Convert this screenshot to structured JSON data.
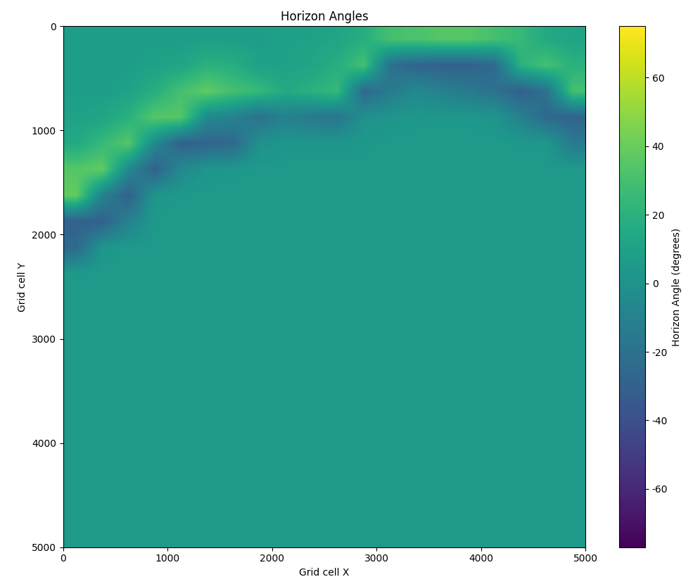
{
  "chart_data": {
    "type": "heatmap",
    "title": "Horizon Angles",
    "x_label": "Grid cell X",
    "y_label": "Grid cell Y",
    "xlim": [
      0,
      5000
    ],
    "ylim": [
      5000,
      0
    ],
    "xticks": [
      0,
      1000,
      2000,
      3000,
      4000,
      5000
    ],
    "yticks": [
      0,
      1000,
      2000,
      3000,
      4000,
      5000
    ],
    "color": "viridis",
    "colorbar_label": "Horizon Angle (degrees)",
    "color_range": [
      -77,
      75
    ],
    "color_ticks": [
      -60,
      -40,
      -20,
      0,
      20,
      40,
      60
    ],
    "cells": [
      [
        8,
        8,
        8,
        8,
        8,
        8,
        8,
        8,
        10,
        10,
        12,
        18,
        30,
        32,
        35,
        35,
        30,
        25,
        15,
        12
      ],
      [
        8,
        8,
        8,
        10,
        12,
        20,
        18,
        10,
        10,
        12,
        18,
        30,
        -20,
        -28,
        -30,
        -30,
        -25,
        20,
        30,
        20
      ],
      [
        8,
        8,
        10,
        18,
        30,
        38,
        30,
        25,
        15,
        20,
        25,
        -25,
        -15,
        -5,
        -10,
        -15,
        -20,
        -30,
        -20,
        30
      ],
      [
        10,
        12,
        20,
        35,
        35,
        -5,
        -10,
        -20,
        -10,
        -15,
        -18,
        0,
        3,
        4,
        4,
        4,
        3,
        -10,
        -25,
        -28
      ],
      [
        15,
        25,
        35,
        -5,
        -30,
        -28,
        -25,
        0,
        3,
        3,
        3,
        4,
        5,
        5,
        5,
        5,
        5,
        4,
        4,
        -15
      ],
      [
        35,
        38,
        -5,
        -30,
        -5,
        3,
        4,
        5,
        5,
        5,
        5,
        5,
        5,
        5,
        5,
        5,
        5,
        5,
        5,
        5
      ],
      [
        38,
        -10,
        -30,
        3,
        5,
        5,
        5,
        5,
        5,
        5,
        5,
        5,
        5,
        5,
        5,
        5,
        5,
        5,
        5,
        5
      ],
      [
        -30,
        -30,
        -10,
        5,
        5,
        5,
        5,
        5,
        5,
        5,
        5,
        5,
        5,
        5,
        5,
        5,
        5,
        5,
        5,
        5
      ],
      [
        -25,
        3,
        5,
        5,
        5,
        5,
        5,
        5,
        5,
        5,
        5,
        5,
        5,
        5,
        5,
        5,
        5,
        5,
        5,
        5
      ],
      [
        5,
        5,
        5,
        5,
        5,
        5,
        5,
        5,
        5,
        5,
        5,
        5,
        5,
        5,
        5,
        5,
        5,
        5,
        5,
        5
      ],
      [
        5,
        5,
        5,
        5,
        5,
        5,
        5,
        5,
        5,
        5,
        5,
        5,
        5,
        5,
        5,
        5,
        5,
        5,
        5,
        5
      ],
      [
        5,
        5,
        5,
        5,
        5,
        5,
        5,
        5,
        5,
        5,
        5,
        5,
        5,
        5,
        5,
        5,
        5,
        5,
        5,
        5
      ],
      [
        5,
        5,
        5,
        5,
        5,
        5,
        5,
        5,
        5,
        5,
        5,
        5,
        5,
        5,
        5,
        5,
        5,
        5,
        5,
        5
      ],
      [
        5,
        5,
        5,
        5,
        5,
        5,
        5,
        5,
        5,
        5,
        5,
        5,
        5,
        5,
        5,
        5,
        5,
        5,
        5,
        5
      ],
      [
        5,
        5,
        5,
        5,
        5,
        5,
        5,
        5,
        5,
        5,
        5,
        5,
        5,
        5,
        5,
        5,
        5,
        5,
        5,
        5
      ],
      [
        5,
        5,
        5,
        5,
        5,
        5,
        5,
        5,
        5,
        5,
        5,
        5,
        5,
        5,
        5,
        5,
        5,
        5,
        5,
        5
      ],
      [
        5,
        5,
        5,
        5,
        5,
        5,
        5,
        5,
        5,
        5,
        5,
        5,
        5,
        5,
        5,
        5,
        5,
        5,
        5,
        5
      ],
      [
        5,
        5,
        5,
        5,
        5,
        5,
        5,
        5,
        5,
        5,
        5,
        5,
        5,
        5,
        5,
        5,
        5,
        5,
        5,
        5
      ],
      [
        5,
        5,
        5,
        5,
        5,
        5,
        5,
        5,
        5,
        5,
        5,
        5,
        5,
        5,
        5,
        5,
        5,
        5,
        5,
        5
      ],
      [
        5,
        5,
        5,
        5,
        5,
        5,
        5,
        5,
        5,
        5,
        5,
        5,
        5,
        5,
        5,
        5,
        5,
        5,
        5,
        5
      ]
    ]
  }
}
